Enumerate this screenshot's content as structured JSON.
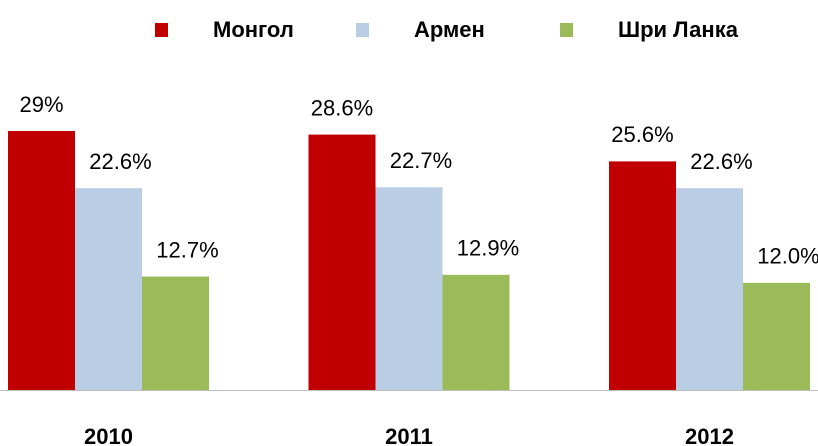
{
  "chart_data": {
    "type": "bar",
    "categories": [
      "2010",
      "2011",
      "2012"
    ],
    "series": [
      {
        "name": "Монгол",
        "color": "#c00000",
        "values": [
          29,
          28.6,
          25.6
        ],
        "value_labels": [
          "29%",
          "28.6%",
          "25.6%"
        ]
      },
      {
        "name": "Армен",
        "color": "#b9cde5",
        "values": [
          22.6,
          22.7,
          22.6
        ],
        "value_labels": [
          "22.6%",
          "22.7%",
          "22.6%"
        ]
      },
      {
        "name": "Шри Ланка",
        "color": "#9bbb59",
        "values": [
          12.7,
          12.9,
          12.0
        ],
        "value_labels": [
          "12.7%",
          "12.9%",
          "12.0%"
        ]
      }
    ]
  }
}
